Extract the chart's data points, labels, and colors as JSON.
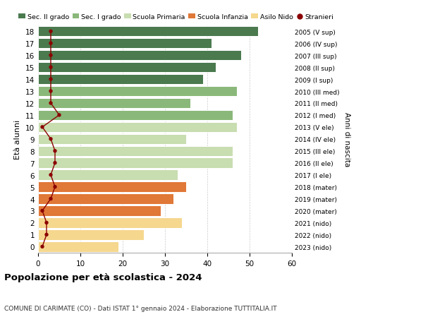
{
  "ages": [
    0,
    1,
    2,
    3,
    4,
    5,
    6,
    7,
    8,
    9,
    10,
    11,
    12,
    13,
    14,
    15,
    16,
    17,
    18
  ],
  "bar_values": [
    19,
    25,
    34,
    29,
    32,
    35,
    33,
    46,
    46,
    35,
    47,
    46,
    36,
    47,
    39,
    42,
    48,
    41,
    52
  ],
  "stranieri_values": [
    1,
    2,
    2,
    1,
    3,
    4,
    3,
    4,
    4,
    3,
    1,
    5,
    3,
    3,
    3,
    3,
    3,
    3,
    3
  ],
  "right_labels": [
    "2023 (nido)",
    "2022 (nido)",
    "2021 (nido)",
    "2020 (mater)",
    "2019 (mater)",
    "2018 (mater)",
    "2017 (I ele)",
    "2016 (II ele)",
    "2015 (III ele)",
    "2014 (IV ele)",
    "2013 (V ele)",
    "2012 (I med)",
    "2011 (II med)",
    "2010 (III med)",
    "2009 (I sup)",
    "2008 (II sup)",
    "2007 (III sup)",
    "2006 (IV sup)",
    "2005 (V sup)"
  ],
  "bar_colors": [
    "#f5d78e",
    "#f5d78e",
    "#f5d78e",
    "#e07838",
    "#e07838",
    "#e07838",
    "#c8ddb0",
    "#c8ddb0",
    "#c8ddb0",
    "#c8ddb0",
    "#c8ddb0",
    "#8ab87a",
    "#8ab87a",
    "#8ab87a",
    "#4a7a4e",
    "#4a7a4e",
    "#4a7a4e",
    "#4a7a4e",
    "#4a7a4e"
  ],
  "legend_labels": [
    "Sec. II grado",
    "Sec. I grado",
    "Scuola Primaria",
    "Scuola Infanzia",
    "Asilo Nido",
    "Stranieri"
  ],
  "legend_colors": [
    "#4a7a4e",
    "#8ab87a",
    "#c8ddb0",
    "#e07838",
    "#f5d78e",
    "#8b0000"
  ],
  "title": "Popolazione per età scolastica - 2024",
  "subtitle": "COMUNE DI CARIMATE (CO) - Dati ISTAT 1° gennaio 2024 - Elaborazione TUTTITALIA.IT",
  "ylabel": "Età alunni",
  "right_ylabel": "Anni di nascita",
  "xlim": [
    0,
    60
  ],
  "xticks": [
    0,
    10,
    20,
    30,
    40,
    50,
    60
  ],
  "dot_color": "#8b0000",
  "line_color": "#8b0000",
  "background_color": "#ffffff",
  "grid_color": "#cccccc"
}
